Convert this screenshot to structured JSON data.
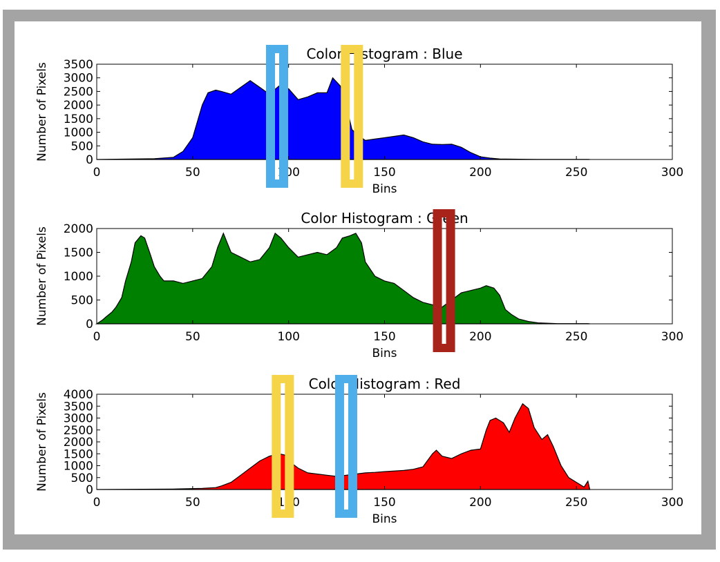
{
  "colors": {
    "frame": "#a4a4a4",
    "marker_blue": "#4daeea",
    "marker_yellow": "#f5d44a",
    "marker_red": "#a8241a"
  },
  "chart_data": [
    {
      "type": "area",
      "title": "Color Histogram : Blue",
      "xlabel": "Bins",
      "ylabel": "Number of Pixels",
      "xlim": [
        0,
        300
      ],
      "ylim": [
        0,
        3500
      ],
      "xticks": [
        0,
        50,
        100,
        150,
        200,
        250,
        300
      ],
      "yticks": [
        0,
        500,
        1000,
        1500,
        2000,
        2500,
        3000,
        3500
      ],
      "fill": "#0000ff",
      "grid": false,
      "series": [
        {
          "x": [
            0,
            30,
            40,
            45,
            50,
            55,
            58,
            62,
            65,
            70,
            75,
            80,
            85,
            90,
            95,
            100,
            105,
            110,
            115,
            120,
            123,
            127,
            130,
            133,
            136,
            140,
            145,
            150,
            155,
            160,
            165,
            170,
            175,
            180,
            185,
            190,
            195,
            200,
            205,
            210,
            220,
            230,
            256,
            257
          ],
          "y": [
            0,
            30,
            80,
            300,
            800,
            2000,
            2450,
            2550,
            2500,
            2400,
            2650,
            2900,
            2650,
            2400,
            2700,
            2600,
            2200,
            2300,
            2450,
            2450,
            3000,
            2700,
            2000,
            1100,
            900,
            700,
            750,
            800,
            850,
            900,
            800,
            650,
            560,
            550,
            560,
            450,
            250,
            100,
            50,
            20,
            10,
            5,
            5,
            0
          ]
        }
      ],
      "markers": [
        {
          "color": "marker_blue",
          "x_center": 94
        },
        {
          "color": "marker_yellow",
          "x_center": 133
        }
      ]
    },
    {
      "type": "area",
      "title": "Color Histogram : Green",
      "xlabel": "Bins",
      "ylabel": "Number of Pixels",
      "xlim": [
        0,
        300
      ],
      "ylim": [
        0,
        2000
      ],
      "xticks": [
        0,
        50,
        100,
        150,
        200,
        250,
        300
      ],
      "yticks": [
        0,
        500,
        1000,
        1500,
        2000
      ],
      "fill": "#008000",
      "grid": false,
      "series": [
        {
          "x": [
            0,
            3,
            5,
            8,
            10,
            13,
            15,
            18,
            20,
            23,
            25,
            28,
            30,
            33,
            35,
            40,
            45,
            50,
            55,
            60,
            63,
            66,
            68,
            70,
            75,
            80,
            85,
            90,
            93,
            96,
            100,
            105,
            110,
            115,
            120,
            125,
            128,
            132,
            135,
            138,
            140,
            145,
            150,
            155,
            160,
            165,
            170,
            175,
            180,
            185,
            190,
            195,
            200,
            203,
            207,
            210,
            213,
            216,
            220,
            225,
            230,
            240,
            256,
            257
          ],
          "y": [
            0,
            80,
            150,
            250,
            350,
            550,
            900,
            1300,
            1700,
            1850,
            1800,
            1450,
            1200,
            1000,
            900,
            900,
            850,
            900,
            950,
            1200,
            1600,
            1900,
            1700,
            1500,
            1400,
            1300,
            1350,
            1600,
            1900,
            1800,
            1600,
            1400,
            1450,
            1500,
            1450,
            1600,
            1800,
            1850,
            1900,
            1700,
            1300,
            1000,
            900,
            850,
            700,
            550,
            450,
            400,
            350,
            500,
            650,
            700,
            750,
            800,
            750,
            600,
            300,
            200,
            100,
            50,
            20,
            5,
            5,
            0
          ]
        }
      ],
      "markers": [
        {
          "color": "marker_red",
          "x_center": 181
        }
      ]
    },
    {
      "type": "area",
      "title": "Color Histogram : Red",
      "xlabel": "Bins",
      "ylabel": "Number of Pixels",
      "xlim": [
        0,
        300
      ],
      "ylim": [
        0,
        4000
      ],
      "xticks": [
        0,
        50,
        100,
        150,
        200,
        250,
        300
      ],
      "yticks": [
        0,
        500,
        1000,
        1500,
        2000,
        2500,
        3000,
        3500,
        4000
      ],
      "fill": "#ff0000",
      "grid": false,
      "series": [
        {
          "x": [
            0,
            40,
            55,
            62,
            65,
            70,
            75,
            80,
            85,
            90,
            95,
            98,
            100,
            105,
            110,
            115,
            120,
            125,
            130,
            135,
            140,
            145,
            150,
            160,
            165,
            170,
            175,
            177,
            180,
            185,
            190,
            195,
            200,
            203,
            205,
            208,
            212,
            215,
            218,
            222,
            225,
            228,
            232,
            235,
            238,
            242,
            246,
            250,
            254,
            256,
            257
          ],
          "y": [
            0,
            20,
            50,
            80,
            150,
            300,
            600,
            900,
            1200,
            1400,
            1500,
            1450,
            1200,
            900,
            700,
            650,
            600,
            550,
            600,
            650,
            700,
            720,
            750,
            800,
            850,
            950,
            1500,
            1650,
            1400,
            1300,
            1500,
            1650,
            1700,
            2500,
            2900,
            3000,
            2800,
            2400,
            3000,
            3600,
            3400,
            2600,
            2100,
            2300,
            1800,
            1000,
            500,
            300,
            100,
            350,
            0
          ]
        }
      ],
      "markers": [
        {
          "color": "marker_yellow",
          "x_center": 97
        },
        {
          "color": "marker_blue",
          "x_center": 130
        }
      ]
    }
  ]
}
